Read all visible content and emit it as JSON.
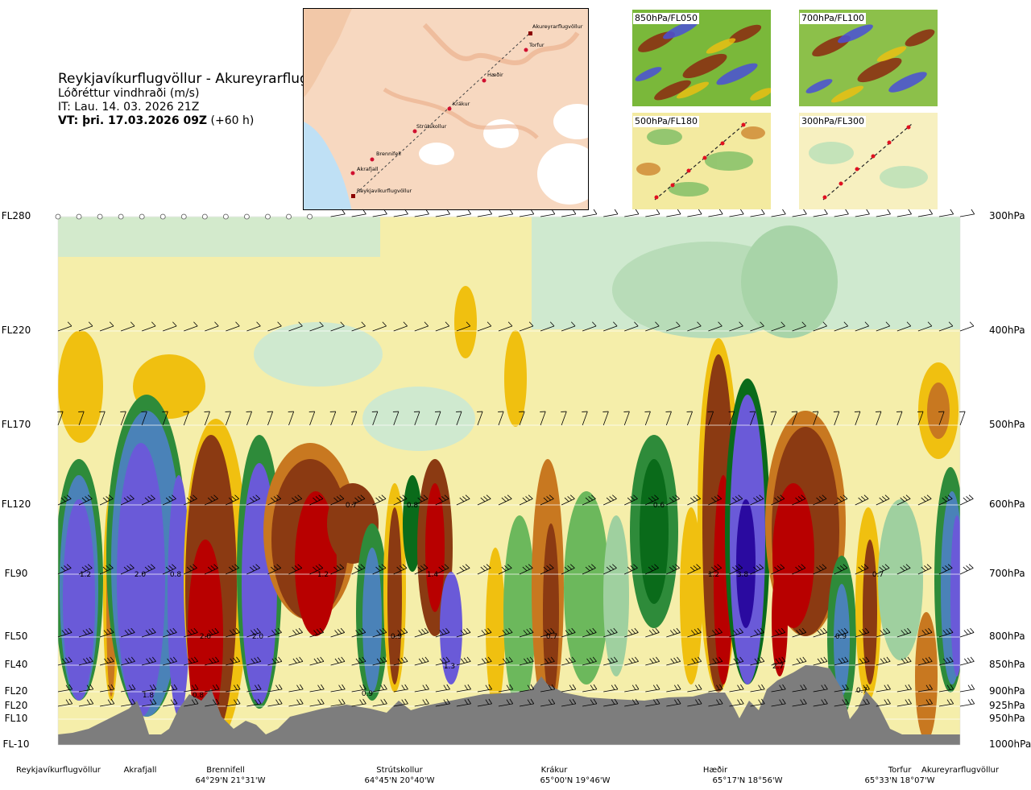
{
  "header": {
    "route": "Reykjavíkurflugvöllur - Akureyrarflugvöllur",
    "parameter": "Lóðréttur vindhraði (m/s)",
    "issue_time": "IT: Lau. 14. 03. 2026 21Z",
    "valid_time_bold": "VT: þri. 17.03.2026 09Z",
    "valid_time_offset": " (+60 h)"
  },
  "route_map": {
    "waypoints": [
      "Reykjavíkurflugvöllur",
      "Akrafjall",
      "Brennifell",
      "Strútskollur",
      "Krákur",
      "Hæðir",
      "Torfur",
      "Akureyrarflugvöllur"
    ]
  },
  "mini_maps": [
    {
      "label": "850hPa/FL050"
    },
    {
      "label": "700hPa/FL100"
    },
    {
      "label": "500hPa/FL180"
    },
    {
      "label": "300hPa/FL300"
    }
  ],
  "chart_data": {
    "type": "heatmap",
    "title": "Lóðréttur vindhraði (m/s)",
    "x_axis": "route distance",
    "y_axis_left_flight_levels": [
      "FL280",
      "FL220",
      "FL170",
      "FL120",
      "FL90",
      "FL50",
      "FL40",
      "FL20",
      "FL20",
      "FL10",
      "FL-10"
    ],
    "y_axis_right_pressure": [
      "300hPa",
      "400hPa",
      "500hPa",
      "600hPa",
      "700hPa",
      "800hPa",
      "850hPa",
      "900hPa",
      "925hPa",
      "950hPa",
      "1000hPa"
    ],
    "pressure_levels_hpa": [
      300,
      400,
      500,
      600,
      700,
      800,
      850,
      900,
      925,
      950,
      1000
    ],
    "locations": [
      {
        "name": "Reykjavíkurflugvöllur",
        "coord": ""
      },
      {
        "name": "Akrafjall",
        "coord": ""
      },
      {
        "name": "Brennifell",
        "coord": "64°29'N 21°31'W"
      },
      {
        "name": "Strútskollur",
        "coord": "64°45'N 20°40'W"
      },
      {
        "name": "Krákur",
        "coord": "65°00'N 19°46'W"
      },
      {
        "name": "Hæðir",
        "coord": "65°17'N 18°56'W"
      },
      {
        "name": "Torfur",
        "coord": "65°33'N 18°07'W"
      },
      {
        "name": "Akureyrarflugvöllur",
        "coord": ""
      }
    ],
    "contour_labels": [
      "1.2",
      "2.0",
      "0.8",
      "2.0",
      "2.0",
      "0.8",
      "1.8",
      "0.7",
      "1.2",
      "0.8",
      "1.4",
      "0.9",
      "1.3",
      "0.9",
      "0.7",
      "0.6",
      "1.2",
      "3.8",
      "2.7",
      "0.9",
      "0.7",
      "0.7"
    ],
    "colors": {
      "sink_strong": "#b80000",
      "sink": "#8b3a12",
      "sink_light": "#c87820",
      "sink_weak": "#f0c010",
      "neutral_down": "#f5eeaa",
      "neutral_up": "#cfe9cf",
      "lift_weak": "#9fd09f",
      "lift": "#2e8b3a",
      "lift_strong": "#0a6b1a",
      "lift_vstrong": "#4a82b8",
      "lift_extreme": "#6a5ad8",
      "lift_max": "#2a0aa0",
      "terrain": "#7d7d7d"
    }
  }
}
